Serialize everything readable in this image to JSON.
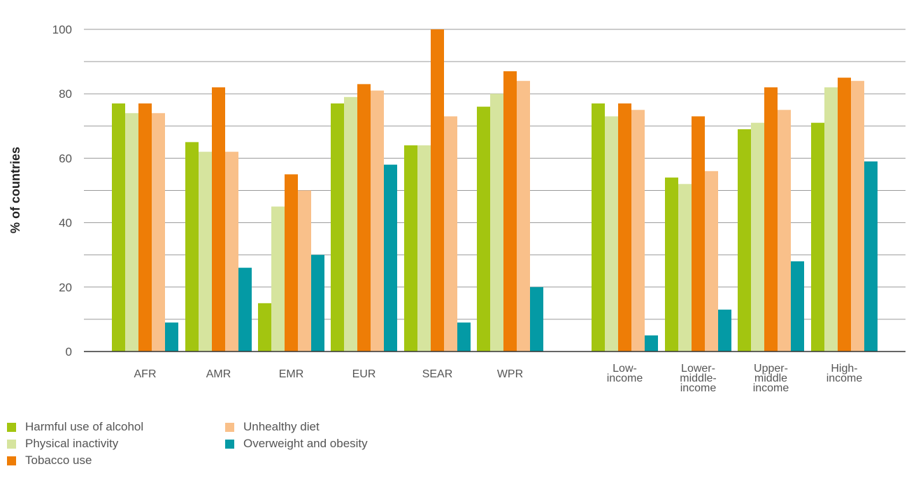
{
  "chart_data": {
    "type": "bar",
    "ylabel": "% of countries",
    "xlabel": "",
    "ylim": [
      0,
      100
    ],
    "yticks": [
      0,
      20,
      40,
      60,
      80,
      100
    ],
    "grid": "horizontal",
    "legend_position": "bottom-left",
    "categories": [
      {
        "lines": [
          "AFR"
        ]
      },
      {
        "lines": [
          "AMR"
        ]
      },
      {
        "lines": [
          "EMR"
        ]
      },
      {
        "lines": [
          "EUR"
        ]
      },
      {
        "lines": [
          "SEAR"
        ]
      },
      {
        "lines": [
          "WPR"
        ]
      },
      {
        "lines": [
          "Low-",
          "income"
        ]
      },
      {
        "lines": [
          "Lower-",
          "middle-",
          "income"
        ]
      },
      {
        "lines": [
          "Upper-",
          "middle",
          "income"
        ]
      },
      {
        "lines": [
          "High-",
          "income"
        ]
      }
    ],
    "series": [
      {
        "name": "Harmful use of alcohol",
        "color": "#a3c510",
        "values": [
          77,
          65,
          15,
          77,
          64,
          76,
          77,
          54,
          69,
          71
        ]
      },
      {
        "name": "Physical inactivity",
        "color": "#d6e49e",
        "values": [
          74,
          62,
          45,
          79,
          64,
          80,
          73,
          52,
          71,
          82
        ]
      },
      {
        "name": "Tobacco use",
        "color": "#ee7d06",
        "values": [
          77,
          82,
          55,
          83,
          100,
          87,
          77,
          73,
          82,
          85
        ]
      },
      {
        "name": "Unhealthy diet",
        "color": "#f9c08a",
        "values": [
          74,
          62,
          50,
          81,
          73,
          84,
          75,
          56,
          75,
          84
        ]
      },
      {
        "name": "Overweight and obesity",
        "color": "#049aa5",
        "values": [
          9,
          26,
          30,
          58,
          9,
          20,
          5,
          13,
          28,
          59
        ]
      }
    ]
  }
}
